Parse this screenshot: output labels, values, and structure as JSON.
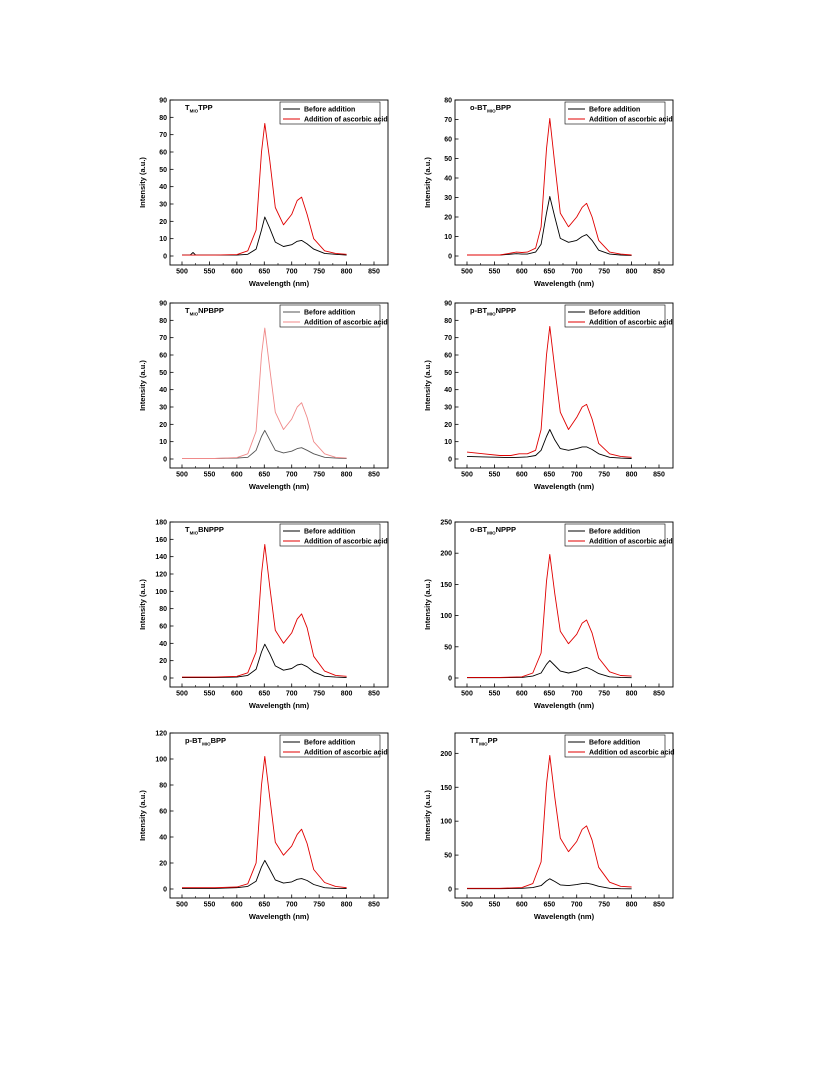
{
  "chart_data": [
    {
      "type": "line",
      "title": {
        "pre": "T",
        "sub": "MIO",
        "post": "TPP"
      },
      "xlabel": "Wavelength (nm)",
      "ylabel": "Intensity (a.u.)",
      "xlim": [
        500,
        850
      ],
      "ylim": [
        0,
        90
      ],
      "xticks": [
        500,
        550,
        600,
        650,
        700,
        750,
        800,
        850
      ],
      "yticks": [
        0,
        10,
        20,
        30,
        40,
        50,
        60,
        70,
        80,
        90
      ],
      "legend_position": "top-right",
      "series": [
        {
          "name": "Before addition",
          "color": "#000000",
          "x": [
            500,
            515,
            520,
            525,
            560,
            600,
            620,
            635,
            645,
            651,
            660,
            670,
            685,
            700,
            710,
            718,
            728,
            740,
            760,
            780,
            800
          ],
          "y": [
            0.5,
            0.5,
            2,
            0.5,
            0.5,
            0.5,
            1,
            4,
            15,
            22.5,
            16,
            8,
            5.5,
            6.5,
            8.5,
            9,
            7,
            4,
            1.5,
            1,
            0.5
          ]
        },
        {
          "name": "Addition of ascorbic acid",
          "color": "#e00000",
          "x": [
            500,
            560,
            600,
            620,
            635,
            645,
            651,
            660,
            670,
            685,
            700,
            710,
            718,
            728,
            740,
            760,
            780,
            800
          ],
          "y": [
            0.5,
            0.5,
            0.8,
            3,
            15,
            60,
            76.5,
            55,
            28,
            18,
            24,
            32,
            34,
            24,
            10,
            3,
            1.5,
            1
          ]
        }
      ]
    },
    {
      "type": "line",
      "title": {
        "pre": "o-BT",
        "sub": "MIO",
        "post": "BPP"
      },
      "xlabel": "Wavelength (nm)",
      "ylabel": "Intensity (a.u.)",
      "xlim": [
        500,
        850
      ],
      "ylim": [
        0,
        80
      ],
      "xticks": [
        500,
        550,
        600,
        650,
        700,
        750,
        800,
        850
      ],
      "yticks": [
        0,
        10,
        20,
        30,
        40,
        50,
        60,
        70,
        80
      ],
      "legend_position": "top-right",
      "series": [
        {
          "name": "Before addition",
          "color": "#000000",
          "x": [
            500,
            560,
            590,
            600,
            610,
            625,
            635,
            645,
            651,
            660,
            670,
            685,
            700,
            710,
            718,
            728,
            740,
            760,
            780,
            800
          ],
          "y": [
            0.5,
            0.5,
            1.2,
            1,
            1,
            2,
            6,
            22,
            30.5,
            20,
            9,
            7,
            8,
            10,
            11,
            8,
            3,
            1,
            0.5,
            0.3
          ]
        },
        {
          "name": "Addition of ascorbic acid",
          "color": "#e00000",
          "x": [
            500,
            560,
            590,
            600,
            610,
            625,
            635,
            645,
            651,
            660,
            670,
            685,
            700,
            710,
            718,
            728,
            740,
            760,
            780,
            800
          ],
          "y": [
            0.5,
            0.5,
            2,
            1.8,
            2,
            4,
            15,
            55,
            70.5,
            47,
            22,
            15,
            20,
            25,
            27,
            20,
            8,
            2,
            1,
            0.5
          ]
        }
      ]
    },
    {
      "type": "line",
      "title": {
        "pre": "T",
        "sub": "MIO",
        "post": "NPBPP"
      },
      "xlabel": "Wavelength (nm)",
      "ylabel": "Intensity (a.u.)",
      "xlim": [
        500,
        850
      ],
      "ylim": [
        0,
        90
      ],
      "xticks": [
        500,
        550,
        600,
        650,
        700,
        750,
        800,
        850
      ],
      "yticks": [
        0,
        10,
        20,
        30,
        40,
        50,
        60,
        70,
        80,
        90
      ],
      "legend_position": "top-right",
      "series": [
        {
          "name": "Before addition",
          "color": "#555555",
          "x": [
            500,
            560,
            600,
            620,
            635,
            645,
            651,
            660,
            670,
            685,
            700,
            710,
            718,
            728,
            740,
            760,
            780,
            800
          ],
          "y": [
            0.3,
            0.3,
            0.5,
            1,
            5,
            13,
            16.5,
            11,
            5,
            3.5,
            4.5,
            6,
            6.5,
            5,
            3,
            1,
            0.5,
            0.3
          ]
        },
        {
          "name": "Addition of ascorbic acid",
          "color": "#f08a8a",
          "x": [
            500,
            560,
            600,
            620,
            635,
            645,
            651,
            660,
            670,
            685,
            700,
            710,
            718,
            728,
            740,
            760,
            780,
            800
          ],
          "y": [
            0.3,
            0.3,
            0.8,
            3,
            16,
            60,
            75.5,
            52,
            27,
            17,
            23,
            30,
            32.5,
            24,
            10,
            3,
            1,
            0.5
          ]
        }
      ]
    },
    {
      "type": "line",
      "title": {
        "pre": "p-BT",
        "sub": "MIO",
        "post": "NPPP"
      },
      "xlabel": "Wavelength (nm)",
      "ylabel": "Intensity (a.u.)",
      "xlim": [
        500,
        850
      ],
      "ylim": [
        0,
        90
      ],
      "xticks": [
        500,
        550,
        600,
        650,
        700,
        750,
        800,
        850
      ],
      "yticks": [
        0,
        10,
        20,
        30,
        40,
        50,
        60,
        70,
        80,
        90
      ],
      "legend_position": "top-right",
      "series": [
        {
          "name": "Before addition",
          "color": "#000000",
          "x": [
            500,
            530,
            560,
            580,
            595,
            610,
            625,
            635,
            645,
            651,
            660,
            670,
            685,
            700,
            710,
            718,
            728,
            740,
            760,
            780,
            800
          ],
          "y": [
            1.5,
            1.2,
            1,
            0.8,
            1,
            1.2,
            2,
            5,
            13,
            17,
            11,
            6,
            5,
            6,
            7,
            7,
            5.5,
            3,
            1,
            0.5,
            0.3
          ]
        },
        {
          "name": "Addition of ascorbic acid",
          "color": "#e00000",
          "x": [
            500,
            530,
            560,
            580,
            595,
            610,
            625,
            635,
            645,
            651,
            660,
            670,
            685,
            700,
            710,
            718,
            728,
            740,
            760,
            780,
            800
          ],
          "y": [
            4,
            3,
            2,
            2,
            3,
            3,
            5,
            17,
            60,
            76.5,
            52,
            27,
            17,
            24,
            30,
            31.5,
            23,
            9,
            3,
            1.5,
            1
          ]
        }
      ]
    },
    {
      "type": "line",
      "title": {
        "pre": "T",
        "sub": "MIO",
        "post": "BNPPP"
      },
      "xlabel": "Wavelength (nm)",
      "ylabel": "Intensity (a.u.)",
      "xlim": [
        500,
        850
      ],
      "ylim": [
        0,
        180
      ],
      "xticks": [
        500,
        550,
        600,
        650,
        700,
        750,
        800,
        850
      ],
      "yticks": [
        0,
        20,
        40,
        60,
        80,
        100,
        120,
        140,
        160,
        180
      ],
      "legend_position": "top-right",
      "series": [
        {
          "name": "Before addition",
          "color": "#000000",
          "x": [
            500,
            560,
            600,
            620,
            635,
            645,
            651,
            660,
            670,
            685,
            700,
            710,
            718,
            728,
            740,
            760,
            780,
            800
          ],
          "y": [
            0.5,
            0.5,
            1,
            3,
            10,
            30,
            39,
            28,
            14,
            9,
            11,
            15,
            16,
            13,
            7,
            2,
            1,
            0.5
          ]
        },
        {
          "name": "Addition of ascorbic acid",
          "color": "#e00000",
          "x": [
            500,
            560,
            600,
            620,
            635,
            645,
            651,
            660,
            670,
            685,
            700,
            710,
            718,
            728,
            740,
            760,
            780,
            800
          ],
          "y": [
            1,
            1,
            2,
            6,
            30,
            120,
            154,
            105,
            55,
            40,
            52,
            68,
            74,
            58,
            25,
            8,
            3,
            2
          ]
        }
      ]
    },
    {
      "type": "line",
      "title": {
        "pre": "o-BT",
        "sub": "MIO",
        "post": "NPPP"
      },
      "xlabel": "Wavelength (nm)",
      "ylabel": "Intensity (a.u.)",
      "xlim": [
        500,
        850
      ],
      "ylim": [
        0,
        250
      ],
      "xticks": [
        500,
        550,
        600,
        650,
        700,
        750,
        800,
        850
      ],
      "yticks": [
        0,
        50,
        100,
        150,
        200,
        250
      ],
      "legend_position": "top-right",
      "series": [
        {
          "name": "Before addition",
          "color": "#000000",
          "x": [
            500,
            560,
            600,
            620,
            635,
            645,
            651,
            660,
            670,
            685,
            700,
            710,
            718,
            728,
            740,
            760,
            780,
            800
          ],
          "y": [
            0.5,
            0.5,
            1,
            3,
            8,
            22,
            28,
            20,
            11,
            8,
            11,
            15,
            17,
            13,
            7,
            2,
            1,
            0.5
          ]
        },
        {
          "name": "Addition of ascorbic acid",
          "color": "#e00000",
          "x": [
            500,
            560,
            600,
            620,
            635,
            645,
            651,
            660,
            670,
            685,
            700,
            710,
            718,
            728,
            740,
            760,
            780,
            800
          ],
          "y": [
            1,
            1,
            2,
            8,
            40,
            155,
            198,
            135,
            75,
            55,
            70,
            88,
            93,
            72,
            32,
            10,
            4,
            3
          ]
        }
      ]
    },
    {
      "type": "line",
      "title": {
        "pre": "p-BT",
        "sub": "MIO",
        "post": "BPP"
      },
      "xlabel": "Wavelength (nm)",
      "ylabel": "Intensity (a.u.)",
      "xlim": [
        500,
        850
      ],
      "ylim": [
        0,
        120
      ],
      "xticks": [
        500,
        550,
        600,
        650,
        700,
        750,
        800,
        850
      ],
      "yticks": [
        0,
        20,
        40,
        60,
        80,
        100,
        120
      ],
      "legend_position": "top-right",
      "series": [
        {
          "name": "Before addition",
          "color": "#000000",
          "x": [
            500,
            560,
            600,
            620,
            635,
            645,
            651,
            660,
            670,
            685,
            700,
            710,
            718,
            728,
            740,
            760,
            780,
            800
          ],
          "y": [
            0.5,
            0.5,
            1,
            2,
            6,
            17,
            22,
            15,
            7,
            4.5,
            5.5,
            7.5,
            8,
            6.5,
            3.5,
            1,
            0.5,
            0.3
          ]
        },
        {
          "name": "Addition of ascorbic acid",
          "color": "#e00000",
          "x": [
            500,
            560,
            600,
            620,
            635,
            645,
            651,
            660,
            670,
            685,
            700,
            710,
            718,
            728,
            740,
            760,
            780,
            800
          ],
          "y": [
            1,
            1,
            1.5,
            4,
            20,
            80,
            102,
            70,
            36,
            26,
            33,
            42,
            46,
            35,
            15,
            5,
            2,
            1
          ]
        }
      ]
    },
    {
      "type": "line",
      "title": {
        "pre": "TT",
        "sub": "MIO",
        "post": "PP"
      },
      "xlabel": "Wavelength (nm)",
      "ylabel": "Intensity (a.u.)",
      "xlim": [
        500,
        850
      ],
      "ylim": [
        0,
        230
      ],
      "xticks": [
        500,
        550,
        600,
        650,
        700,
        750,
        800,
        850
      ],
      "yticks": [
        0,
        50,
        100,
        150,
        200
      ],
      "legend_position": "top-right",
      "series": [
        {
          "name": "Before addition",
          "color": "#000000",
          "x": [
            500,
            560,
            600,
            620,
            635,
            645,
            651,
            660,
            670,
            685,
            700,
            710,
            718,
            728,
            740,
            760,
            780,
            800
          ],
          "y": [
            0.5,
            0.5,
            1,
            2,
            5,
            12,
            15,
            11,
            6,
            5,
            6.5,
            8,
            8.5,
            7,
            4,
            1,
            0.5,
            0.3
          ]
        },
        {
          "name": "Addition od ascorbic acid",
          "color": "#e00000",
          "x": [
            500,
            560,
            600,
            620,
            635,
            645,
            651,
            660,
            670,
            685,
            700,
            710,
            718,
            728,
            740,
            760,
            780,
            800
          ],
          "y": [
            1,
            1,
            2,
            8,
            40,
            155,
            197,
            135,
            75,
            55,
            70,
            88,
            93,
            72,
            32,
            10,
            4,
            3
          ]
        }
      ]
    }
  ]
}
